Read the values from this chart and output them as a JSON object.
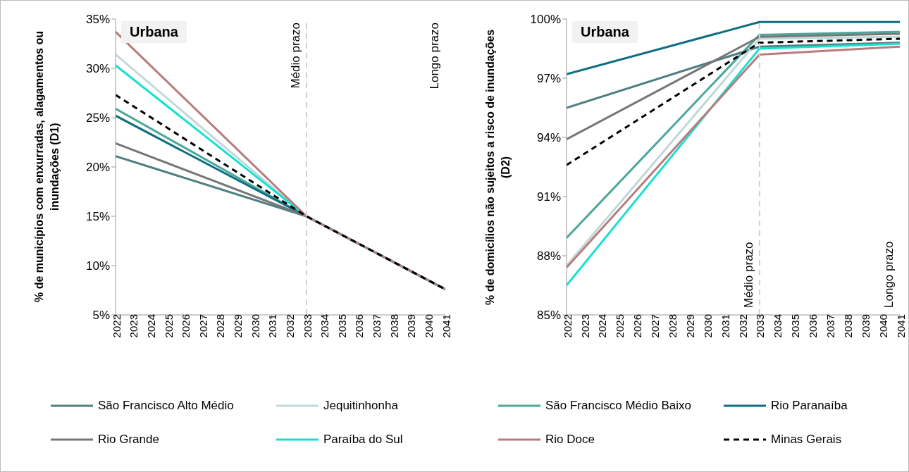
{
  "chart_data": [
    {
      "type": "line",
      "ylabel": "% de municípios com enxurradas, alagamentos ou inundações (D1)",
      "annotations": [
        "Urbana",
        "Longo prazo"
      ],
      "xlim": [
        2022,
        2041
      ],
      "xticks": [
        2022,
        2023,
        2024,
        2025,
        2026,
        2027,
        2028,
        2029,
        2030,
        2031,
        2032,
        2033,
        2034,
        2035,
        2036,
        2037,
        2038,
        2039,
        2040,
        2041
      ],
      "ylim": [
        5,
        35
      ],
      "yticks": [
        {
          "value": 5,
          "label": "5%"
        },
        {
          "value": 10,
          "label": "10%"
        },
        {
          "value": 15,
          "label": "15%"
        },
        {
          "value": 20,
          "label": "20%"
        },
        {
          "value": 25,
          "label": "25%"
        },
        {
          "value": 30,
          "label": "30%"
        },
        {
          "value": 35,
          "label": "35%"
        }
      ],
      "grid": false,
      "marker": "none",
      "legend": "bottom",
      "ref_lines": [
        {
          "axis": "x",
          "value": 2033,
          "label": "Médio prazo",
          "color": "#d0d0d0",
          "line_style": "dashed"
        }
      ],
      "series": [
        {
          "name": "São Francisco Alto Médio",
          "color": "#4f7f80",
          "x": [
            2022,
            2033,
            2041
          ],
          "values": [
            21.1,
            15,
            7.6
          ]
        },
        {
          "name": "Jequitinhonha",
          "color": "#c0d8d8",
          "x": [
            2022,
            2033,
            2041
          ],
          "values": [
            31.4,
            15,
            7.6
          ]
        },
        {
          "name": "São Francisco Médio Baixo",
          "color": "#4aa79a",
          "x": [
            2022,
            2033,
            2041
          ],
          "values": [
            25.9,
            15,
            7.6
          ]
        },
        {
          "name": "Rio Paranaíba",
          "color": "#0f6e82",
          "x": [
            2022,
            2033,
            2041
          ],
          "values": [
            25.2,
            15,
            7.6
          ]
        },
        {
          "name": "Rio Grande",
          "color": "#767676",
          "x": [
            2022,
            2033,
            2041
          ],
          "values": [
            22.4,
            15,
            7.6
          ]
        },
        {
          "name": "Paraíba do Sul",
          "color": "#18e0d0",
          "x": [
            2022,
            2033,
            2041
          ],
          "values": [
            30.3,
            15,
            7.6
          ]
        },
        {
          "name": "Rio Doce",
          "color": "#b87c7c",
          "x": [
            2022,
            2033,
            2041
          ],
          "values": [
            33.7,
            15,
            7.6
          ]
        },
        {
          "name": "Minas Gerais",
          "color": "#000000",
          "line_style": "dashed",
          "x": [
            2022,
            2033,
            2041
          ],
          "values": [
            27.3,
            15,
            7.6
          ]
        }
      ]
    },
    {
      "type": "line",
      "ylabel": "% de domicílios não sujeitos a risco de inundações (D2)",
      "annotations": [
        "Urbana",
        "Longo prazo"
      ],
      "xlim": [
        2022,
        2041
      ],
      "xticks": [
        2022,
        2023,
        2024,
        2025,
        2026,
        2027,
        2028,
        2029,
        2030,
        2031,
        2032,
        2033,
        2034,
        2035,
        2036,
        2037,
        2038,
        2039,
        2040,
        2041
      ],
      "ylim": [
        85,
        100
      ],
      "yticks": [
        {
          "value": 85,
          "label": "85%"
        },
        {
          "value": 88,
          "label": "88%"
        },
        {
          "value": 91,
          "label": "91%"
        },
        {
          "value": 94,
          "label": "94%"
        },
        {
          "value": 97,
          "label": "97%"
        },
        {
          "value": 100,
          "label": "100%"
        }
      ],
      "grid": false,
      "marker": "none",
      "ref_lines": [
        {
          "axis": "x",
          "value": 2033,
          "label": "Médio prazo",
          "color": "#d0d0d0",
          "line_style": "dashed"
        }
      ],
      "series": [
        {
          "color": "#4f7f80",
          "x": [
            2022,
            2033,
            2041
          ],
          "values": [
            95.5,
            98.6,
            98.8
          ]
        },
        {
          "color": "#c0d8d8",
          "x": [
            2022,
            2033,
            2041
          ],
          "values": [
            87.5,
            99.0,
            99.1
          ]
        },
        {
          "color": "#4aa79a",
          "x": [
            2022,
            2033,
            2041
          ],
          "values": [
            88.9,
            99.2,
            99.35
          ]
        },
        {
          "color": "#0f6e82",
          "x": [
            2022,
            2033,
            2041
          ],
          "values": [
            97.2,
            99.85,
            99.85
          ]
        },
        {
          "color": "#767676",
          "x": [
            2022,
            2033,
            2041
          ],
          "values": [
            93.9,
            99.1,
            99.25
          ]
        },
        {
          "color": "#18e0d0",
          "x": [
            2022,
            2033,
            2041
          ],
          "values": [
            86.5,
            98.5,
            98.75
          ]
        },
        {
          "color": "#b87c7c",
          "x": [
            2022,
            2033,
            2041
          ],
          "values": [
            87.4,
            98.2,
            98.6
          ]
        },
        {
          "color": "#000000",
          "line_style": "dashed",
          "x": [
            2022,
            2033,
            2041
          ],
          "values": [
            92.6,
            98.8,
            99.0
          ]
        }
      ]
    }
  ]
}
